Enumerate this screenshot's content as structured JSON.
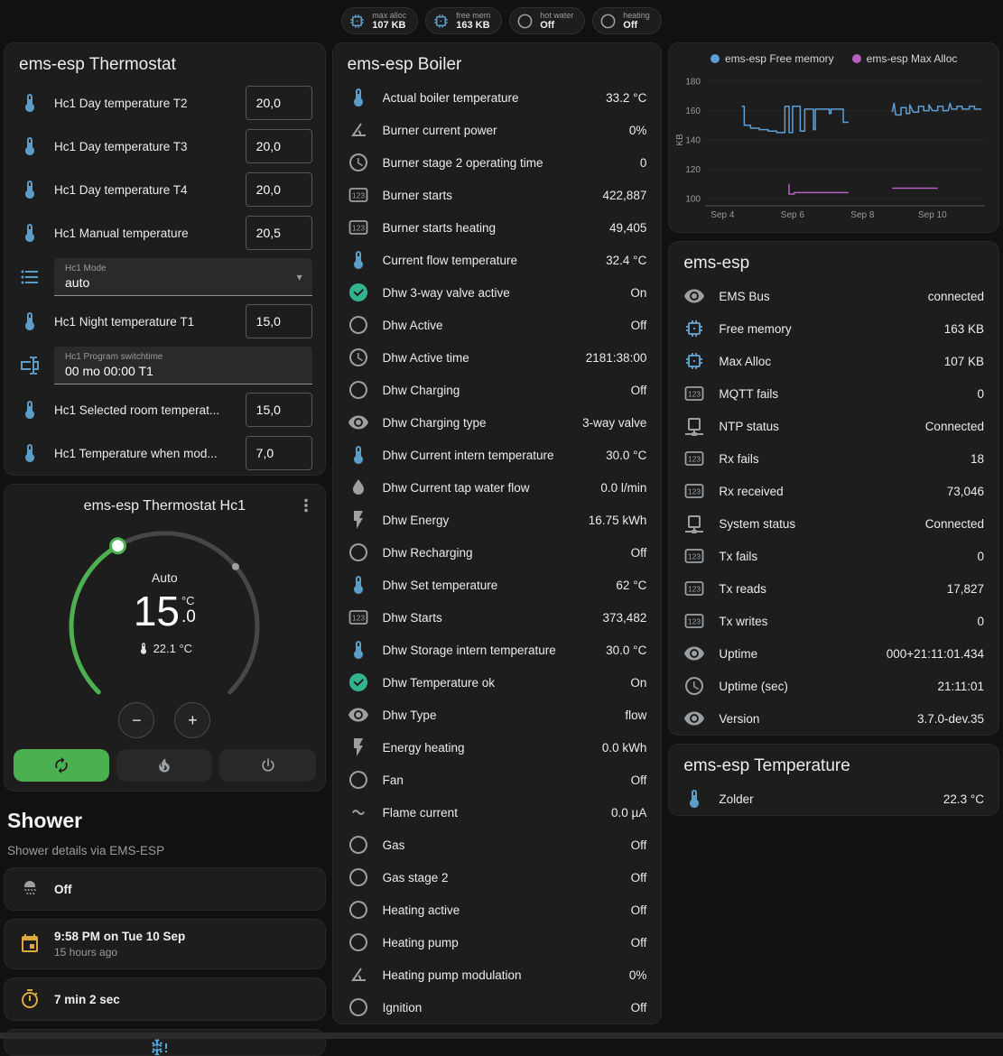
{
  "theme": {
    "background": "#111111",
    "card": "#1d1d1d",
    "accent_green": "#4caf50",
    "icon_blue": "#5d9cc7",
    "icon_gray": "#9da0a2",
    "icon_green": "#32b58f",
    "icon_amber": "#dcab3c",
    "icon_snow_blue": "#4fa8de"
  },
  "topbar": {
    "chips": [
      {
        "icon": "memory",
        "icon_color": "#5d9cc7",
        "label": "max alloc",
        "value": "107 KB"
      },
      {
        "icon": "memory",
        "icon_color": "#5d9cc7",
        "label": "free mem",
        "value": "163 KB"
      },
      {
        "icon": "circle-outline",
        "icon_color": "#9da0a2",
        "label": "hot water",
        "value": "Off"
      },
      {
        "icon": "circle-outline",
        "icon_color": "#9da0a2",
        "label": "heating",
        "value": "Off"
      }
    ]
  },
  "thermostat_card": {
    "title": "ems-esp Thermostat",
    "rows": [
      {
        "icon": "thermometer",
        "icon_color": "#5d9cc7",
        "name": "Hc1 Day temperature T2",
        "control": "number",
        "value": "20,0"
      },
      {
        "icon": "thermometer",
        "icon_color": "#5d9cc7",
        "name": "Hc1 Day temperature T3",
        "control": "number",
        "value": "20,0"
      },
      {
        "icon": "thermometer",
        "icon_color": "#5d9cc7",
        "name": "Hc1 Day temperature T4",
        "control": "number",
        "value": "20,0"
      },
      {
        "icon": "thermometer",
        "icon_color": "#5d9cc7",
        "name": "Hc1 Manual temperature",
        "control": "number",
        "value": "20,5"
      },
      {
        "icon": "list",
        "icon_color": "#5d9cc7",
        "control": "select",
        "label": "Hc1 Mode",
        "value": "auto"
      },
      {
        "icon": "thermometer",
        "icon_color": "#5d9cc7",
        "name": "Hc1 Night temperature T1",
        "control": "number",
        "value": "15,0"
      },
      {
        "icon": "form-textbox",
        "icon_color": "#5d9cc7",
        "control": "textfield",
        "label": "Hc1 Program switchtime",
        "value": "00 mo 00:00 T1"
      },
      {
        "icon": "thermometer",
        "icon_color": "#5d9cc7",
        "name": "Hc1 Selected room temperat...",
        "control": "number",
        "value": "15,0"
      },
      {
        "icon": "thermometer",
        "icon_color": "#5d9cc7",
        "name": "Hc1 Temperature when mod...",
        "control": "number",
        "value": "7,0"
      }
    ]
  },
  "hc1_card": {
    "title": "ems-esp Thermostat Hc1",
    "mode": "Auto",
    "temp_integer": "15",
    "temp_decimal": ".0",
    "temp_unit": "°C",
    "current_temp": "22.1 °C",
    "decrease": "−",
    "increase": "+"
  },
  "shower": {
    "title": "Shower",
    "subtitle": "Shower details via EMS-ESP",
    "rows": [
      {
        "icon": "shower-head",
        "icon_color": "#9da0a2",
        "primary": "Off"
      },
      {
        "icon": "calendar",
        "icon_color": "#dcab3c",
        "primary": "9:58 PM on Tue 10 Sep",
        "secondary": "15 hours ago"
      },
      {
        "icon": "timer",
        "icon_color": "#dcab3c",
        "primary": "7 min 2 sec"
      },
      {
        "icon": "snowflake-alert",
        "icon_color": "#4fa8de",
        "partial": true
      }
    ]
  },
  "boiler": {
    "title": "ems-esp Boiler",
    "rows": [
      {
        "icon": "thermometer",
        "icon_color": "#5d9cc7",
        "name": "Actual boiler temperature",
        "value": "33.2 °C"
      },
      {
        "icon": "angle-acute",
        "icon_color": "#9da0a2",
        "name": "Burner current power",
        "value": "0%"
      },
      {
        "icon": "clock-outline",
        "icon_color": "#9da0a2",
        "name": "Burner stage 2 operating time",
        "value": "0"
      },
      {
        "icon": "counter",
        "icon_color": "#9da0a2",
        "name": "Burner starts",
        "value": "422,887"
      },
      {
        "icon": "counter",
        "icon_color": "#9da0a2",
        "name": "Burner starts heating",
        "value": "49,405"
      },
      {
        "icon": "thermometer",
        "icon_color": "#5d9cc7",
        "name": "Current flow temperature",
        "value": "32.4 °C"
      },
      {
        "icon": "check-circle",
        "icon_color": "#32b58f",
        "name": "Dhw 3-way valve active",
        "value": "On"
      },
      {
        "icon": "circle-outline",
        "icon_color": "#9da0a2",
        "name": "Dhw Active",
        "value": "Off"
      },
      {
        "icon": "clock-outline",
        "icon_color": "#9da0a2",
        "name": "Dhw Active time",
        "value": "2181:38:00"
      },
      {
        "icon": "circle-outline",
        "icon_color": "#9da0a2",
        "name": "Dhw Charging",
        "value": "Off"
      },
      {
        "icon": "eye",
        "icon_color": "#9da0a2",
        "name": "Dhw Charging type",
        "value": "3-way valve"
      },
      {
        "icon": "thermometer",
        "icon_color": "#5d9cc7",
        "name": "Dhw Current intern temperature",
        "value": "30.0 °C"
      },
      {
        "icon": "water-flow",
        "icon_color": "#9da0a2",
        "name": "Dhw Current tap water flow",
        "value": "0.0 l/min"
      },
      {
        "icon": "flash",
        "icon_color": "#9da0a2",
        "name": "Dhw Energy",
        "value": "16.75 kWh"
      },
      {
        "icon": "circle-outline",
        "icon_color": "#9da0a2",
        "name": "Dhw Recharging",
        "value": "Off"
      },
      {
        "icon": "thermometer",
        "icon_color": "#5d9cc7",
        "name": "Dhw Set temperature",
        "value": "62 °C"
      },
      {
        "icon": "counter",
        "icon_color": "#9da0a2",
        "name": "Dhw Starts",
        "value": "373,482"
      },
      {
        "icon": "thermometer",
        "icon_color": "#5d9cc7",
        "name": "Dhw Storage intern temperature",
        "value": "30.0 °C"
      },
      {
        "icon": "check-circle",
        "icon_color": "#32b58f",
        "name": "Dhw Temperature ok",
        "value": "On"
      },
      {
        "icon": "eye",
        "icon_color": "#9da0a2",
        "name": "Dhw Type",
        "value": "flow"
      },
      {
        "icon": "flash",
        "icon_color": "#9da0a2",
        "name": "Energy heating",
        "value": "0.0 kWh"
      },
      {
        "icon": "circle-outline",
        "icon_color": "#9da0a2",
        "name": "Fan",
        "value": "Off"
      },
      {
        "icon": "current-ac",
        "icon_color": "#9da0a2",
        "name": "Flame current",
        "value": "0.0 µA"
      },
      {
        "icon": "circle-outline",
        "icon_color": "#9da0a2",
        "name": "Gas",
        "value": "Off"
      },
      {
        "icon": "circle-outline",
        "icon_color": "#9da0a2",
        "name": "Gas stage 2",
        "value": "Off"
      },
      {
        "icon": "circle-outline",
        "icon_color": "#9da0a2",
        "name": "Heating active",
        "value": "Off"
      },
      {
        "icon": "circle-outline",
        "icon_color": "#9da0a2",
        "name": "Heating pump",
        "value": "Off"
      },
      {
        "icon": "angle-acute",
        "icon_color": "#9da0a2",
        "name": "Heating pump modulation",
        "value": "0%"
      },
      {
        "icon": "circle-outline",
        "icon_color": "#9da0a2",
        "name": "Ignition",
        "value": "Off"
      }
    ]
  },
  "chart_data": {
    "type": "line",
    "title": "",
    "ylabel": "KB",
    "ylim": [
      95,
      185
    ],
    "yticks": [
      100,
      120,
      140,
      160,
      180
    ],
    "xlim": [
      3.5,
      11.5
    ],
    "xticks": [
      {
        "x": 4,
        "label": "Sep 4"
      },
      {
        "x": 6,
        "label": "Sep 6"
      },
      {
        "x": 8,
        "label": "Sep 8"
      },
      {
        "x": 10,
        "label": "Sep 10"
      }
    ],
    "grid": "faint-horizontal",
    "legend_position": "top",
    "series": [
      {
        "name": "ems-esp Free memory",
        "color": "#5c9fd6",
        "segments": [
          [
            [
              4.55,
              163
            ],
            [
              4.62,
              163
            ],
            [
              4.62,
              150
            ],
            [
              4.8,
              150
            ],
            [
              4.8,
              148
            ],
            [
              5.05,
              148
            ],
            [
              5.05,
              147
            ],
            [
              5.3,
              147
            ],
            [
              5.3,
              146
            ],
            [
              5.55,
              146
            ],
            [
              5.55,
              145
            ],
            [
              5.78,
              145
            ],
            [
              5.78,
              163
            ],
            [
              5.9,
              163
            ],
            [
              5.9,
              145
            ],
            [
              6.0,
              145
            ],
            [
              6.0,
              163
            ],
            [
              6.22,
              163
            ],
            [
              6.22,
              146
            ],
            [
              6.35,
              146
            ],
            [
              6.35,
              161
            ],
            [
              6.6,
              161
            ],
            [
              6.6,
              147
            ],
            [
              6.65,
              147
            ],
            [
              6.65,
              161
            ],
            [
              7.05,
              161
            ],
            [
              7.05,
              158
            ],
            [
              7.1,
              158
            ],
            [
              7.1,
              161
            ],
            [
              7.45,
              161
            ],
            [
              7.45,
              152
            ],
            [
              7.6,
              152
            ]
          ],
          [
            [
              8.85,
              159
            ],
            [
              8.9,
              165
            ],
            [
              8.95,
              157
            ],
            [
              9.1,
              157
            ],
            [
              9.1,
              162
            ],
            [
              9.25,
              162
            ],
            [
              9.25,
              158
            ],
            [
              9.35,
              158
            ],
            [
              9.35,
              164
            ],
            [
              9.45,
              159
            ],
            [
              9.6,
              159
            ],
            [
              9.6,
              163
            ],
            [
              9.75,
              163
            ],
            [
              9.75,
              160
            ],
            [
              9.9,
              160
            ],
            [
              9.9,
              164
            ],
            [
              10.0,
              160
            ],
            [
              10.15,
              160
            ],
            [
              10.15,
              163
            ],
            [
              10.3,
              163
            ],
            [
              10.3,
              160
            ],
            [
              10.45,
              160
            ],
            [
              10.5,
              165
            ],
            [
              10.55,
              161
            ],
            [
              10.7,
              161
            ],
            [
              10.7,
              163
            ],
            [
              10.85,
              163
            ],
            [
              10.85,
              161
            ],
            [
              11.05,
              161
            ],
            [
              11.05,
              163
            ],
            [
              11.2,
              163
            ],
            [
              11.2,
              161
            ],
            [
              11.4,
              161
            ]
          ]
        ]
      },
      {
        "name": "ems-esp Max Alloc",
        "color": "#b460bd",
        "segments": [
          [
            [
              5.9,
              110
            ],
            [
              5.9,
              103
            ],
            [
              6.05,
              103
            ],
            [
              6.05,
              104
            ],
            [
              7.6,
              104
            ]
          ],
          [
            [
              8.85,
              107
            ],
            [
              10.15,
              107
            ]
          ]
        ]
      }
    ]
  },
  "emsesp_card": {
    "title": "ems-esp",
    "rows": [
      {
        "icon": "eye",
        "icon_color": "#9da0a2",
        "name": "EMS Bus",
        "value": "connected"
      },
      {
        "icon": "memory",
        "icon_color": "#5d9cc7",
        "name": "Free memory",
        "value": "163 KB"
      },
      {
        "icon": "memory",
        "icon_color": "#5d9cc7",
        "name": "Max Alloc",
        "value": "107 KB"
      },
      {
        "icon": "counter",
        "icon_color": "#9da0a2",
        "name": "MQTT fails",
        "value": "0"
      },
      {
        "icon": "network",
        "icon_color": "#9da0a2",
        "name": "NTP status",
        "value": "Connected"
      },
      {
        "icon": "counter",
        "icon_color": "#9da0a2",
        "name": "Rx fails",
        "value": "18"
      },
      {
        "icon": "counter",
        "icon_color": "#9da0a2",
        "name": "Rx received",
        "value": "73,046"
      },
      {
        "icon": "network",
        "icon_color": "#9da0a2",
        "name": "System status",
        "value": "Connected"
      },
      {
        "icon": "counter",
        "icon_color": "#9da0a2",
        "name": "Tx fails",
        "value": "0"
      },
      {
        "icon": "counter",
        "icon_color": "#9da0a2",
        "name": "Tx reads",
        "value": "17,827"
      },
      {
        "icon": "counter",
        "icon_color": "#9da0a2",
        "name": "Tx writes",
        "value": "0"
      },
      {
        "icon": "eye",
        "icon_color": "#9da0a2",
        "name": "Uptime",
        "value": "000+21:11:01.434"
      },
      {
        "icon": "clock-outline",
        "icon_color": "#9da0a2",
        "name": "Uptime (sec)",
        "value": "21:11:01"
      },
      {
        "icon": "eye",
        "icon_color": "#9da0a2",
        "name": "Version",
        "value": "3.7.0-dev.35"
      }
    ]
  },
  "temperature_card": {
    "title": "ems-esp Temperature",
    "rows": [
      {
        "icon": "thermometer",
        "icon_color": "#5d9cc7",
        "name": "Zolder",
        "value": "22.3 °C"
      }
    ]
  }
}
